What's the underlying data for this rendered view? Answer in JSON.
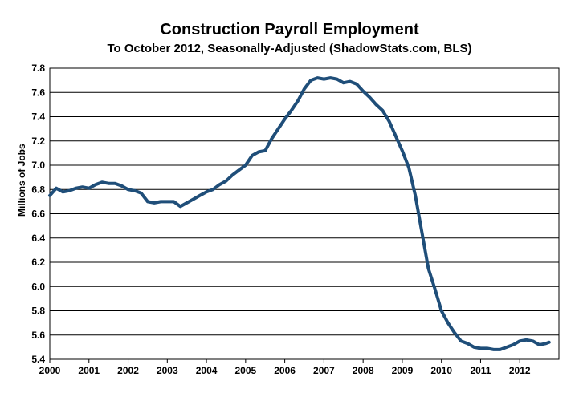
{
  "chart_data": {
    "type": "line",
    "title": "Construction Payroll Employment",
    "subtitle": "To October 2012, Seasonally-Adjusted (ShadowStats.com, BLS)",
    "xlabel": "",
    "ylabel": "Millions of Jobs",
    "ylim": [
      5.4,
      7.8
    ],
    "xlim": [
      2000,
      2013
    ],
    "grid": true,
    "legend": "none",
    "line_color": "#1f4e79",
    "x_tick_labels": [
      "2000",
      "2001",
      "2002",
      "2003",
      "2004",
      "2005",
      "2006",
      "2007",
      "2008",
      "2009",
      "2010",
      "2011",
      "2012"
    ],
    "y_tick_labels": [
      "5.4",
      "5.6",
      "5.8",
      "6.0",
      "6.2",
      "6.4",
      "6.6",
      "6.8",
      "7.0",
      "7.2",
      "7.4",
      "7.6",
      "7.8"
    ],
    "series": [
      {
        "x": [
          "2000-01",
          "2000-03",
          "2000-05",
          "2000-07",
          "2000-09",
          "2000-11",
          "2001-01",
          "2001-03",
          "2001-05",
          "2001-07",
          "2001-09",
          "2001-11",
          "2002-01",
          "2002-03",
          "2002-05",
          "2002-07",
          "2002-09",
          "2002-11",
          "2003-01",
          "2003-03",
          "2003-05",
          "2003-07",
          "2003-09",
          "2003-11",
          "2004-01",
          "2004-03",
          "2004-05",
          "2004-07",
          "2004-09",
          "2004-11",
          "2005-01",
          "2005-03",
          "2005-05",
          "2005-07",
          "2005-09",
          "2005-11",
          "2006-01",
          "2006-03",
          "2006-05",
          "2006-07",
          "2006-09",
          "2006-11",
          "2007-01",
          "2007-03",
          "2007-05",
          "2007-07",
          "2007-09",
          "2007-11",
          "2008-01",
          "2008-03",
          "2008-05",
          "2008-07",
          "2008-09",
          "2008-11",
          "2009-01",
          "2009-03",
          "2009-05",
          "2009-07",
          "2009-09",
          "2009-11",
          "2010-01",
          "2010-03",
          "2010-05",
          "2010-07",
          "2010-09",
          "2010-11",
          "2011-01",
          "2011-03",
          "2011-05",
          "2011-07",
          "2011-09",
          "2011-11",
          "2012-01",
          "2012-03",
          "2012-05",
          "2012-07",
          "2012-09",
          "2012-10"
        ],
        "values": [
          6.75,
          6.81,
          6.78,
          6.79,
          6.81,
          6.82,
          6.81,
          6.84,
          6.86,
          6.85,
          6.85,
          6.83,
          6.8,
          6.79,
          6.77,
          6.7,
          6.69,
          6.7,
          6.7,
          6.7,
          6.66,
          6.69,
          6.72,
          6.75,
          6.78,
          6.8,
          6.84,
          6.87,
          6.92,
          6.96,
          7.0,
          7.08,
          7.11,
          7.12,
          7.22,
          7.3,
          7.38,
          7.45,
          7.53,
          7.63,
          7.7,
          7.72,
          7.71,
          7.72,
          7.71,
          7.68,
          7.69,
          7.67,
          7.61,
          7.56,
          7.5,
          7.45,
          7.36,
          7.24,
          7.12,
          6.98,
          6.75,
          6.45,
          6.15,
          5.98,
          5.8,
          5.7,
          5.62,
          5.55,
          5.53,
          5.5,
          5.49,
          5.49,
          5.48,
          5.48,
          5.5,
          5.52,
          5.55,
          5.56,
          5.55,
          5.52,
          5.53,
          5.54
        ]
      }
    ]
  }
}
